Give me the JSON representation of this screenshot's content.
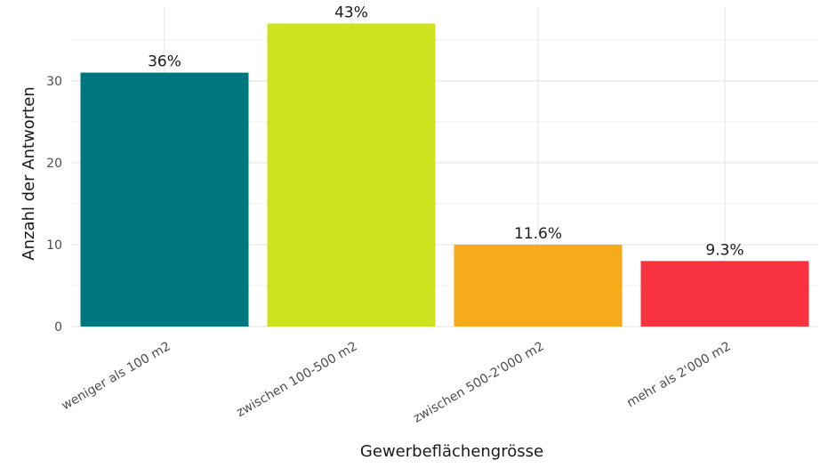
{
  "chart_data": {
    "type": "bar",
    "categories": [
      "weniger als 100 m2",
      "zwischen 100-500 m2",
      "zwischen 500-2'000 m2",
      "mehr als 2'000 m2"
    ],
    "values": [
      31,
      37,
      10,
      8
    ],
    "labels": [
      "36%",
      "43%",
      "11.6%",
      "9.3%"
    ],
    "colors": [
      "#00767f",
      "#cde31f",
      "#f7ab1b",
      "#f9323f"
    ],
    "xlabel": "Gewerbeflächengrösse",
    "ylabel": "Anzahl der Antworten",
    "ylim": [
      0,
      39
    ],
    "yticks": [
      0,
      10,
      20,
      30
    ],
    "grid": true,
    "legend": "none"
  }
}
